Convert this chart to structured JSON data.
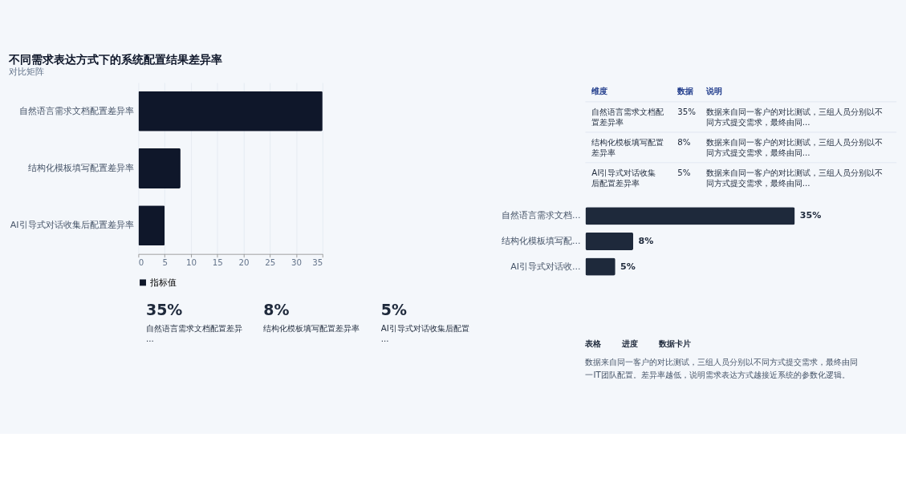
{
  "chart_data": [
    {
      "type": "bar",
      "title": "不同需求表达方式下的系统配置结果差异率",
      "annotations": [
        "对比矩阵"
      ],
      "orientation": "horizontal",
      "categories": [
        "自然语言需求文档配置差异率",
        "结构化模板填写配置差异率",
        "AI引导式对话收集后配置差异率"
      ],
      "series": [
        {
          "name": "指标值",
          "color": "#0f172a",
          "values": [
            35,
            8,
            5
          ]
        }
      ],
      "xlim": [
        0,
        35
      ],
      "xticks": [
        0,
        5,
        10,
        15,
        20,
        25,
        30,
        35
      ],
      "grid": "x",
      "legend": "bottom"
    },
    {
      "type": "other",
      "categories": [
        "维度",
        "数据",
        "说明"
      ],
      "annotations": [
        "自然语言需求文档配置差异率",
        "35%",
        "数据来自同一客户的对比测试，三组人员分别以不同方式提交需求，最终由同...",
        "结构化模板填写配置差异率",
        "8%",
        "数据来自同一客户的对比测试，三组人员分别以不同方式提交需求，最终由同...",
        "AI引导式对话收集后配置差异率",
        "5%",
        "数据来自同一客户的对比测试，三组人员分别以不同方式提交需求，最终由同..."
      ]
    },
    {
      "type": "bar",
      "orientation": "horizontal",
      "categories": [
        "自然语言需求文档...",
        "结构化模板填写配...",
        "AI引导式对话收..."
      ],
      "values": [
        35,
        8,
        5
      ],
      "color": "#1e293b",
      "value_labels": [
        "35%",
        "8%",
        "5%"
      ],
      "tick_labels": "y",
      "annotations": [
        "表格",
        "进度",
        "数据卡片",
        "数据来自同一客户的对比测试，三组人员分别以不同方式提交需求，最终由同一IT团队配置。差异率越低，说明需求表达方式越接近系统的参数化逻辑。"
      ]
    },
    {
      "type": "other",
      "annotations": [
        "35%",
        "自然语言需求文档配置差异...",
        "8%",
        "结构化模板填写配置差异率",
        "5%",
        "AI引导式对话收集后配置..."
      ]
    }
  ]
}
